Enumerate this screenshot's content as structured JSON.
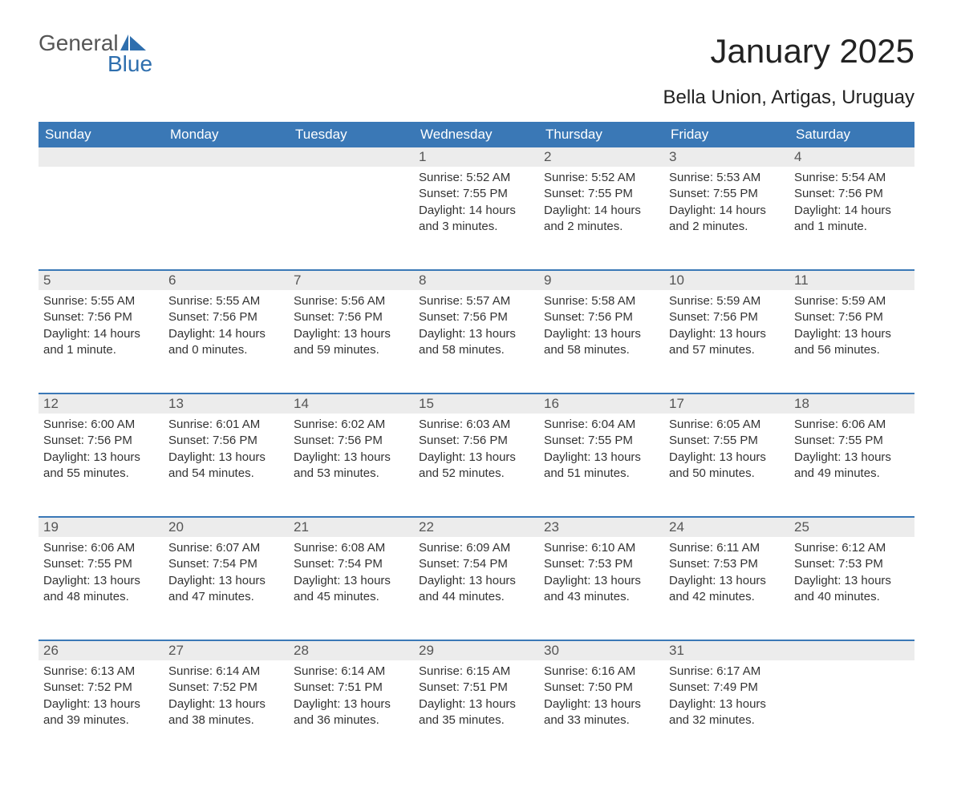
{
  "logo": {
    "word1": "General",
    "word2": "Blue"
  },
  "title": "January 2025",
  "location": "Bella Union, Artigas, Uruguay",
  "colors": {
    "header_bg": "#3a78b6",
    "header_text": "#ffffff",
    "daynum_bg": "#ececec",
    "row_divider": "#3a78b6",
    "body_text": "#333333",
    "logo_gray": "#555555",
    "logo_blue": "#2f6fae",
    "page_bg": "#ffffff"
  },
  "typography": {
    "title_fontsize": 42,
    "location_fontsize": 24,
    "header_fontsize": 17,
    "daynum_fontsize": 17,
    "body_fontsize": 15
  },
  "weekday_labels": [
    "Sunday",
    "Monday",
    "Tuesday",
    "Wednesday",
    "Thursday",
    "Friday",
    "Saturday"
  ],
  "weeks": [
    [
      null,
      null,
      null,
      {
        "n": "1",
        "sunrise": "5:52 AM",
        "sunset": "7:55 PM",
        "daylight": "14 hours and 3 minutes."
      },
      {
        "n": "2",
        "sunrise": "5:52 AM",
        "sunset": "7:55 PM",
        "daylight": "14 hours and 2 minutes."
      },
      {
        "n": "3",
        "sunrise": "5:53 AM",
        "sunset": "7:55 PM",
        "daylight": "14 hours and 2 minutes."
      },
      {
        "n": "4",
        "sunrise": "5:54 AM",
        "sunset": "7:56 PM",
        "daylight": "14 hours and 1 minute."
      }
    ],
    [
      {
        "n": "5",
        "sunrise": "5:55 AM",
        "sunset": "7:56 PM",
        "daylight": "14 hours and 1 minute."
      },
      {
        "n": "6",
        "sunrise": "5:55 AM",
        "sunset": "7:56 PM",
        "daylight": "14 hours and 0 minutes."
      },
      {
        "n": "7",
        "sunrise": "5:56 AM",
        "sunset": "7:56 PM",
        "daylight": "13 hours and 59 minutes."
      },
      {
        "n": "8",
        "sunrise": "5:57 AM",
        "sunset": "7:56 PM",
        "daylight": "13 hours and 58 minutes."
      },
      {
        "n": "9",
        "sunrise": "5:58 AM",
        "sunset": "7:56 PM",
        "daylight": "13 hours and 58 minutes."
      },
      {
        "n": "10",
        "sunrise": "5:59 AM",
        "sunset": "7:56 PM",
        "daylight": "13 hours and 57 minutes."
      },
      {
        "n": "11",
        "sunrise": "5:59 AM",
        "sunset": "7:56 PM",
        "daylight": "13 hours and 56 minutes."
      }
    ],
    [
      {
        "n": "12",
        "sunrise": "6:00 AM",
        "sunset": "7:56 PM",
        "daylight": "13 hours and 55 minutes."
      },
      {
        "n": "13",
        "sunrise": "6:01 AM",
        "sunset": "7:56 PM",
        "daylight": "13 hours and 54 minutes."
      },
      {
        "n": "14",
        "sunrise": "6:02 AM",
        "sunset": "7:56 PM",
        "daylight": "13 hours and 53 minutes."
      },
      {
        "n": "15",
        "sunrise": "6:03 AM",
        "sunset": "7:56 PM",
        "daylight": "13 hours and 52 minutes."
      },
      {
        "n": "16",
        "sunrise": "6:04 AM",
        "sunset": "7:55 PM",
        "daylight": "13 hours and 51 minutes."
      },
      {
        "n": "17",
        "sunrise": "6:05 AM",
        "sunset": "7:55 PM",
        "daylight": "13 hours and 50 minutes."
      },
      {
        "n": "18",
        "sunrise": "6:06 AM",
        "sunset": "7:55 PM",
        "daylight": "13 hours and 49 minutes."
      }
    ],
    [
      {
        "n": "19",
        "sunrise": "6:06 AM",
        "sunset": "7:55 PM",
        "daylight": "13 hours and 48 minutes."
      },
      {
        "n": "20",
        "sunrise": "6:07 AM",
        "sunset": "7:54 PM",
        "daylight": "13 hours and 47 minutes."
      },
      {
        "n": "21",
        "sunrise": "6:08 AM",
        "sunset": "7:54 PM",
        "daylight": "13 hours and 45 minutes."
      },
      {
        "n": "22",
        "sunrise": "6:09 AM",
        "sunset": "7:54 PM",
        "daylight": "13 hours and 44 minutes."
      },
      {
        "n": "23",
        "sunrise": "6:10 AM",
        "sunset": "7:53 PM",
        "daylight": "13 hours and 43 minutes."
      },
      {
        "n": "24",
        "sunrise": "6:11 AM",
        "sunset": "7:53 PM",
        "daylight": "13 hours and 42 minutes."
      },
      {
        "n": "25",
        "sunrise": "6:12 AM",
        "sunset": "7:53 PM",
        "daylight": "13 hours and 40 minutes."
      }
    ],
    [
      {
        "n": "26",
        "sunrise": "6:13 AM",
        "sunset": "7:52 PM",
        "daylight": "13 hours and 39 minutes."
      },
      {
        "n": "27",
        "sunrise": "6:14 AM",
        "sunset": "7:52 PM",
        "daylight": "13 hours and 38 minutes."
      },
      {
        "n": "28",
        "sunrise": "6:14 AM",
        "sunset": "7:51 PM",
        "daylight": "13 hours and 36 minutes."
      },
      {
        "n": "29",
        "sunrise": "6:15 AM",
        "sunset": "7:51 PM",
        "daylight": "13 hours and 35 minutes."
      },
      {
        "n": "30",
        "sunrise": "6:16 AM",
        "sunset": "7:50 PM",
        "daylight": "13 hours and 33 minutes."
      },
      {
        "n": "31",
        "sunrise": "6:17 AM",
        "sunset": "7:49 PM",
        "daylight": "13 hours and 32 minutes."
      },
      null
    ]
  ],
  "labels": {
    "sunrise": "Sunrise: ",
    "sunset": "Sunset: ",
    "daylight": "Daylight: "
  }
}
